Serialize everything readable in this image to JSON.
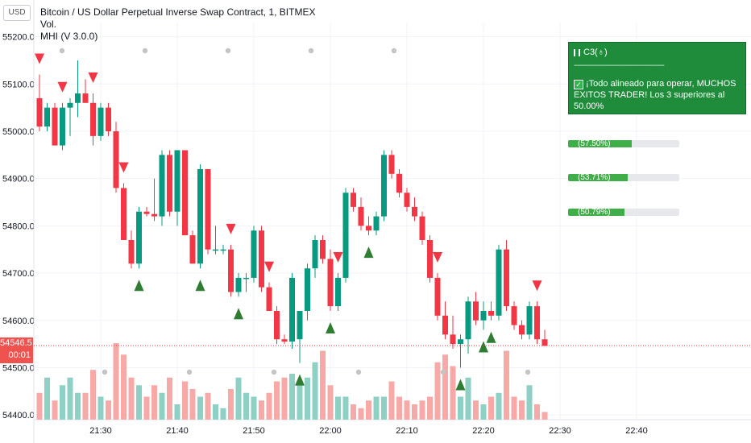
{
  "header": {
    "currency_button": "USD",
    "title": "Bitcoin / US Dollar Perpetual Inverse Swap Contract, 1, BITMEX",
    "indicator_vol": "Vol.",
    "indicator_mhi": "MHI (V 3.0.0)"
  },
  "info_box": {
    "label": "C3(",
    "icon_label": "♁",
    "label_close": ")",
    "separator": "------------------------------------------------",
    "message": "¡Todo alineado para operar, MUCHOS EXITOS TRADER! Los 3 superiores al 50.00%"
  },
  "progress_bars": [
    {
      "label": "(57.50%)",
      "value": 57.5
    },
    {
      "label": "(53.71%)",
      "value": 53.71
    },
    {
      "label": "(50.79%)",
      "value": 50.79
    }
  ],
  "price_tag": {
    "price": "54546.5",
    "countdown": "00:01"
  },
  "colors": {
    "up": "#089981",
    "down": "#f23645",
    "up_vol": "#8fd0c4",
    "down_vol": "#f7a9a7",
    "signal_up": "#2e7d32",
    "signal_down": "#f23645"
  },
  "chart_data": {
    "type": "candlestick",
    "title": "Bitcoin / US Dollar Perpetual Inverse Swap Contract, 1, BITMEX",
    "ylim": [
      54390,
      55230
    ],
    "y_ticks": [
      "55200.0",
      "55100.0",
      "55000.0",
      "54900.0",
      "54800.0",
      "54700.0",
      "54600.0",
      "54500.0",
      "54400.0"
    ],
    "x_ticks": [
      "21:30",
      "21:40",
      "21:50",
      "22:00",
      "22:10",
      "22:20",
      "22:30",
      "22:40"
    ],
    "current_price": 54546.5,
    "candles": [
      {
        "o": 55070,
        "h": 55120,
        "l": 55000,
        "c": 55010
      },
      {
        "o": 55010,
        "h": 55060,
        "l": 55000,
        "c": 55050
      },
      {
        "o": 55050,
        "h": 55060,
        "l": 54970,
        "c": 54970
      },
      {
        "o": 54970,
        "h": 55060,
        "l": 54960,
        "c": 55050
      },
      {
        "o": 55050,
        "h": 55070,
        "l": 54990,
        "c": 55060
      },
      {
        "o": 55060,
        "h": 55150,
        "l": 55030,
        "c": 55080
      },
      {
        "o": 55080,
        "h": 55110,
        "l": 55060,
        "c": 55060
      },
      {
        "o": 55060,
        "h": 55080,
        "l": 54970,
        "c": 54990
      },
      {
        "o": 54990,
        "h": 55060,
        "l": 54980,
        "c": 55050
      },
      {
        "o": 55050,
        "h": 55060,
        "l": 54990,
        "c": 55000
      },
      {
        "o": 55000,
        "h": 55020,
        "l": 54870,
        "c": 54880
      },
      {
        "o": 54880,
        "h": 54890,
        "l": 54770,
        "c": 54770
      },
      {
        "o": 54770,
        "h": 54790,
        "l": 54710,
        "c": 54720
      },
      {
        "o": 54720,
        "h": 54840,
        "l": 54710,
        "c": 54830
      },
      {
        "o": 54830,
        "h": 54840,
        "l": 54820,
        "c": 54825
      },
      {
        "o": 54825,
        "h": 54900,
        "l": 54810,
        "c": 54820
      },
      {
        "o": 54820,
        "h": 54960,
        "l": 54800,
        "c": 54950
      },
      {
        "o": 54950,
        "h": 54960,
        "l": 54820,
        "c": 54830
      },
      {
        "o": 54830,
        "h": 54960,
        "l": 54800,
        "c": 54960
      },
      {
        "o": 54960,
        "h": 54960,
        "l": 54780,
        "c": 54780
      },
      {
        "o": 54780,
        "h": 54790,
        "l": 54720,
        "c": 54720
      },
      {
        "o": 54720,
        "h": 54930,
        "l": 54710,
        "c": 54920
      },
      {
        "o": 54920,
        "h": 54920,
        "l": 54740,
        "c": 54750
      },
      {
        "o": 54750,
        "h": 54800,
        "l": 54740,
        "c": 54750
      },
      {
        "o": 54750,
        "h": 54760,
        "l": 54740,
        "c": 54750
      },
      {
        "o": 54750,
        "h": 54760,
        "l": 54650,
        "c": 54660
      },
      {
        "o": 54660,
        "h": 54700,
        "l": 54650,
        "c": 54690
      },
      {
        "o": 54690,
        "h": 54700,
        "l": 54660,
        "c": 54690
      },
      {
        "o": 54690,
        "h": 54800,
        "l": 54680,
        "c": 54790
      },
      {
        "o": 54790,
        "h": 54800,
        "l": 54660,
        "c": 54670
      },
      {
        "o": 54670,
        "h": 54680,
        "l": 54620,
        "c": 54620
      },
      {
        "o": 54620,
        "h": 54630,
        "l": 54550,
        "c": 54560
      },
      {
        "o": 54560,
        "h": 54570,
        "l": 54550,
        "c": 54555
      },
      {
        "o": 54555,
        "h": 54700,
        "l": 54540,
        "c": 54690
      },
      {
        "o": 54560,
        "h": 54620,
        "l": 54510,
        "c": 54620
      },
      {
        "o": 54620,
        "h": 54720,
        "l": 54600,
        "c": 54710
      },
      {
        "o": 54710,
        "h": 54780,
        "l": 54690,
        "c": 54770
      },
      {
        "o": 54770,
        "h": 54780,
        "l": 54720,
        "c": 54730
      },
      {
        "o": 54730,
        "h": 54750,
        "l": 54620,
        "c": 54630
      },
      {
        "o": 54630,
        "h": 54700,
        "l": 54620,
        "c": 54690
      },
      {
        "o": 54690,
        "h": 54880,
        "l": 54680,
        "c": 54870
      },
      {
        "o": 54870,
        "h": 54880,
        "l": 54830,
        "c": 54840
      },
      {
        "o": 54840,
        "h": 54860,
        "l": 54790,
        "c": 54800
      },
      {
        "o": 54800,
        "h": 54820,
        "l": 54780,
        "c": 54790
      },
      {
        "o": 54790,
        "h": 54830,
        "l": 54780,
        "c": 54820
      },
      {
        "o": 54820,
        "h": 54960,
        "l": 54810,
        "c": 54950
      },
      {
        "o": 54950,
        "h": 54960,
        "l": 54900,
        "c": 54910
      },
      {
        "o": 54910,
        "h": 54920,
        "l": 54860,
        "c": 54870
      },
      {
        "o": 54870,
        "h": 54880,
        "l": 54830,
        "c": 54840
      },
      {
        "o": 54840,
        "h": 54860,
        "l": 54810,
        "c": 54820
      },
      {
        "o": 54820,
        "h": 54830,
        "l": 54760,
        "c": 54770
      },
      {
        "o": 54770,
        "h": 54780,
        "l": 54680,
        "c": 54690
      },
      {
        "o": 54690,
        "h": 54700,
        "l": 54600,
        "c": 54610
      },
      {
        "o": 54610,
        "h": 54640,
        "l": 54560,
        "c": 54570
      },
      {
        "o": 54570,
        "h": 54610,
        "l": 54540,
        "c": 54550
      },
      {
        "o": 54550,
        "h": 54570,
        "l": 54500,
        "c": 54560
      },
      {
        "o": 54560,
        "h": 54650,
        "l": 54530,
        "c": 54640
      },
      {
        "o": 54640,
        "h": 54660,
        "l": 54590,
        "c": 54600
      },
      {
        "o": 54600,
        "h": 54640,
        "l": 54580,
        "c": 54620
      },
      {
        "o": 54620,
        "h": 54640,
        "l": 54600,
        "c": 54610
      },
      {
        "o": 54610,
        "h": 54760,
        "l": 54600,
        "c": 54750
      },
      {
        "o": 54750,
        "h": 54770,
        "l": 54620,
        "c": 54630
      },
      {
        "o": 54630,
        "h": 54640,
        "l": 54580,
        "c": 54590
      },
      {
        "o": 54590,
        "h": 54600,
        "l": 54560,
        "c": 54570
      },
      {
        "o": 54570,
        "h": 54640,
        "l": 54560,
        "c": 54630
      },
      {
        "o": 54630,
        "h": 54640,
        "l": 54550,
        "c": 54560
      },
      {
        "o": 54560,
        "h": 54580,
        "l": 54546,
        "c": 54546
      }
    ],
    "volume_rel": [
      0.35,
      0.55,
      0.25,
      0.45,
      0.55,
      0.35,
      0.35,
      0.65,
      0.3,
      0.25,
      1.0,
      0.85,
      0.55,
      0.45,
      0.3,
      0.45,
      0.35,
      0.55,
      0.2,
      0.5,
      0.4,
      0.3,
      0.35,
      0.2,
      0.15,
      0.4,
      0.55,
      0.35,
      0.3,
      0.25,
      0.35,
      0.5,
      0.55,
      0.6,
      0.45,
      0.55,
      0.75,
      0.9,
      0.45,
      0.3,
      0.3,
      0.2,
      0.15,
      0.25,
      0.3,
      0.3,
      0.5,
      0.3,
      0.25,
      0.2,
      0.25,
      0.3,
      0.75,
      0.85,
      0.7,
      0.3,
      0.55,
      0.25,
      0.2,
      0.3,
      0.35,
      0.9,
      0.3,
      0.25,
      0.45,
      0.2,
      0.1
    ],
    "signals_up_at": [
      13,
      21,
      26,
      34,
      38,
      43,
      55,
      58,
      59
    ],
    "signals_down_at": [
      0,
      3,
      7,
      11,
      25,
      30,
      39,
      52,
      65
    ]
  }
}
